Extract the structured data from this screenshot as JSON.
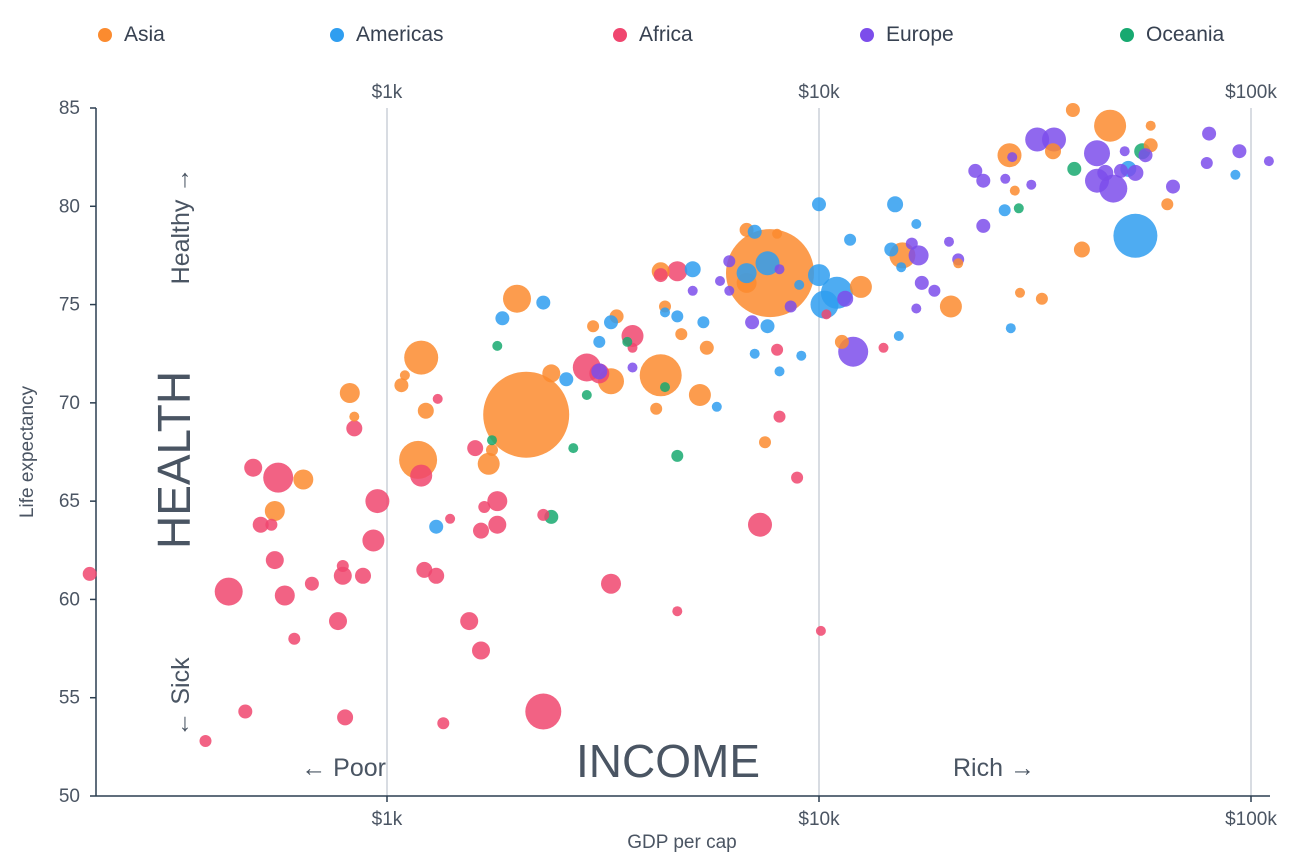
{
  "chart_data": {
    "type": "scatter",
    "title": "",
    "xlabel": "GDP per cap",
    "ylabel": "Life expectancy",
    "x_scale": "log",
    "xlim": [
      200,
      110000
    ],
    "ylim": [
      50,
      85
    ],
    "x_ticks": [
      {
        "value": 1000,
        "label": "$1k"
      },
      {
        "value": 10000,
        "label": "$10k"
      },
      {
        "value": 100000,
        "label": "$100k"
      }
    ],
    "y_ticks": [
      {
        "value": 50,
        "label": "50"
      },
      {
        "value": 55,
        "label": "55"
      },
      {
        "value": 60,
        "label": "60"
      },
      {
        "value": 65,
        "label": "65"
      },
      {
        "value": 70,
        "label": "70"
      },
      {
        "value": 75,
        "label": "75"
      },
      {
        "value": 80,
        "label": "80"
      },
      {
        "value": 85,
        "label": "85"
      }
    ],
    "grid": "vertical lines at x ticks",
    "legend_position": "top",
    "annotations": {
      "health": "HEALTH",
      "income": "INCOME",
      "healthy": "Healthy →",
      "sick": "← Sick",
      "poor": "← Poor",
      "rich": "Rich →"
    },
    "series": [
      {
        "name": "Asia",
        "color": "#fb8b2f",
        "points": [
          {
            "x": 38700,
            "y": 84.9,
            "r": 7
          },
          {
            "x": 47200,
            "y": 84.1,
            "r": 16
          },
          {
            "x": 58600,
            "y": 84.1,
            "r": 5
          },
          {
            "x": 58600,
            "y": 83.1,
            "r": 7
          },
          {
            "x": 27600,
            "y": 82.6,
            "r": 12
          },
          {
            "x": 34800,
            "y": 82.8,
            "r": 8
          },
          {
            "x": 28400,
            "y": 80.8,
            "r": 5
          },
          {
            "x": 64000,
            "y": 80.1,
            "r": 6
          },
          {
            "x": 40600,
            "y": 77.8,
            "r": 8
          },
          {
            "x": 21000,
            "y": 77.1,
            "r": 5
          },
          {
            "x": 15600,
            "y": 77.5,
            "r": 13
          },
          {
            "x": 12500,
            "y": 75.9,
            "r": 11
          },
          {
            "x": 11300,
            "y": 73.1,
            "r": 7
          },
          {
            "x": 20200,
            "y": 74.9,
            "r": 11
          },
          {
            "x": 29200,
            "y": 75.6,
            "r": 5
          },
          {
            "x": 32800,
            "y": 75.3,
            "r": 6
          },
          {
            "x": 7700,
            "y": 76.6,
            "r": 44
          },
          {
            "x": 6800,
            "y": 78.8,
            "r": 7
          },
          {
            "x": 8000,
            "y": 78.6,
            "r": 5
          },
          {
            "x": 6800,
            "y": 76.1,
            "r": 10
          },
          {
            "x": 4300,
            "y": 76.7,
            "r": 9
          },
          {
            "x": 4400,
            "y": 74.9,
            "r": 6
          },
          {
            "x": 4800,
            "y": 73.5,
            "r": 6
          },
          {
            "x": 5500,
            "y": 72.8,
            "r": 7
          },
          {
            "x": 3400,
            "y": 74.4,
            "r": 7
          },
          {
            "x": 3000,
            "y": 73.9,
            "r": 6
          },
          {
            "x": 3300,
            "y": 71.1,
            "r": 13
          },
          {
            "x": 4300,
            "y": 71.4,
            "r": 21
          },
          {
            "x": 5300,
            "y": 70.4,
            "r": 11
          },
          {
            "x": 4200,
            "y": 69.7,
            "r": 6
          },
          {
            "x": 7500,
            "y": 68.0,
            "r": 6
          },
          {
            "x": 2000,
            "y": 75.3,
            "r": 14
          },
          {
            "x": 2400,
            "y": 71.5,
            "r": 9
          },
          {
            "x": 2100,
            "y": 69.4,
            "r": 43
          },
          {
            "x": 1200,
            "y": 72.3,
            "r": 17
          },
          {
            "x": 1100,
            "y": 71.4,
            "r": 5
          },
          {
            "x": 1080,
            "y": 70.9,
            "r": 7
          },
          {
            "x": 1230,
            "y": 69.6,
            "r": 8
          },
          {
            "x": 1180,
            "y": 67.1,
            "r": 19
          },
          {
            "x": 1720,
            "y": 66.9,
            "r": 11
          },
          {
            "x": 1750,
            "y": 67.6,
            "r": 6
          },
          {
            "x": 820,
            "y": 70.5,
            "r": 10
          },
          {
            "x": 840,
            "y": 69.3,
            "r": 5
          },
          {
            "x": 640,
            "y": 66.1,
            "r": 10
          },
          {
            "x": 550,
            "y": 64.5,
            "r": 10
          }
        ]
      },
      {
        "name": "Americas",
        "color": "#2f9ef0",
        "points": [
          {
            "x": 54000,
            "y": 78.5,
            "r": 22
          },
          {
            "x": 52000,
            "y": 81.9,
            "r": 8
          },
          {
            "x": 92000,
            "y": 81.6,
            "r": 5
          },
          {
            "x": 26900,
            "y": 79.8,
            "r": 6
          },
          {
            "x": 15000,
            "y": 80.1,
            "r": 8
          },
          {
            "x": 16800,
            "y": 79.1,
            "r": 5
          },
          {
            "x": 10000,
            "y": 80.1,
            "r": 7
          },
          {
            "x": 11800,
            "y": 78.3,
            "r": 6
          },
          {
            "x": 14700,
            "y": 77.8,
            "r": 7
          },
          {
            "x": 15500,
            "y": 76.9,
            "r": 5
          },
          {
            "x": 10000,
            "y": 76.5,
            "r": 11
          },
          {
            "x": 11000,
            "y": 75.6,
            "r": 16
          },
          {
            "x": 10300,
            "y": 75.0,
            "r": 14
          },
          {
            "x": 15300,
            "y": 73.4,
            "r": 5
          },
          {
            "x": 27800,
            "y": 73.8,
            "r": 5
          },
          {
            "x": 7600,
            "y": 77.1,
            "r": 12
          },
          {
            "x": 9000,
            "y": 76.0,
            "r": 5
          },
          {
            "x": 6800,
            "y": 76.6,
            "r": 10
          },
          {
            "x": 7100,
            "y": 78.7,
            "r": 7
          },
          {
            "x": 5100,
            "y": 76.8,
            "r": 8
          },
          {
            "x": 5400,
            "y": 74.1,
            "r": 6
          },
          {
            "x": 4700,
            "y": 74.4,
            "r": 6
          },
          {
            "x": 4400,
            "y": 74.6,
            "r": 5
          },
          {
            "x": 3300,
            "y": 74.1,
            "r": 7
          },
          {
            "x": 3100,
            "y": 73.1,
            "r": 6
          },
          {
            "x": 7600,
            "y": 73.9,
            "r": 7
          },
          {
            "x": 7100,
            "y": 72.5,
            "r": 5
          },
          {
            "x": 8100,
            "y": 71.6,
            "r": 5
          },
          {
            "x": 9100,
            "y": 72.4,
            "r": 5
          },
          {
            "x": 5800,
            "y": 69.8,
            "r": 5
          },
          {
            "x": 2600,
            "y": 71.2,
            "r": 7
          },
          {
            "x": 2300,
            "y": 75.1,
            "r": 7
          },
          {
            "x": 1850,
            "y": 74.3,
            "r": 7
          },
          {
            "x": 1300,
            "y": 63.7,
            "r": 7
          }
        ]
      },
      {
        "name": "Africa",
        "color": "#f0466f",
        "points": [
          {
            "x": 205,
            "y": 61.3,
            "r": 7
          },
          {
            "x": 380,
            "y": 52.8,
            "r": 6
          },
          {
            "x": 430,
            "y": 60.4,
            "r": 14
          },
          {
            "x": 470,
            "y": 54.3,
            "r": 7
          },
          {
            "x": 490,
            "y": 66.7,
            "r": 9
          },
          {
            "x": 510,
            "y": 63.8,
            "r": 8
          },
          {
            "x": 540,
            "y": 63.8,
            "r": 6
          },
          {
            "x": 560,
            "y": 66.2,
            "r": 15
          },
          {
            "x": 550,
            "y": 62.0,
            "r": 9
          },
          {
            "x": 580,
            "y": 60.2,
            "r": 10
          },
          {
            "x": 610,
            "y": 58.0,
            "r": 6
          },
          {
            "x": 670,
            "y": 60.8,
            "r": 7
          },
          {
            "x": 770,
            "y": 58.9,
            "r": 9
          },
          {
            "x": 790,
            "y": 61.7,
            "r": 6
          },
          {
            "x": 790,
            "y": 61.2,
            "r": 9
          },
          {
            "x": 800,
            "y": 54.0,
            "r": 8
          },
          {
            "x": 840,
            "y": 68.7,
            "r": 8
          },
          {
            "x": 880,
            "y": 61.2,
            "r": 8
          },
          {
            "x": 930,
            "y": 63.0,
            "r": 11
          },
          {
            "x": 950,
            "y": 65.0,
            "r": 12
          },
          {
            "x": 1200,
            "y": 66.3,
            "r": 11
          },
          {
            "x": 1220,
            "y": 61.5,
            "r": 8
          },
          {
            "x": 1300,
            "y": 61.2,
            "r": 8
          },
          {
            "x": 1310,
            "y": 70.2,
            "r": 5
          },
          {
            "x": 1350,
            "y": 53.7,
            "r": 6
          },
          {
            "x": 1400,
            "y": 64.1,
            "r": 5
          },
          {
            "x": 1550,
            "y": 58.9,
            "r": 9
          },
          {
            "x": 1600,
            "y": 67.7,
            "r": 8
          },
          {
            "x": 1650,
            "y": 57.4,
            "r": 9
          },
          {
            "x": 1650,
            "y": 63.5,
            "r": 8
          },
          {
            "x": 1680,
            "y": 64.7,
            "r": 6
          },
          {
            "x": 1800,
            "y": 63.8,
            "r": 9
          },
          {
            "x": 1800,
            "y": 65.0,
            "r": 10
          },
          {
            "x": 2300,
            "y": 64.3,
            "r": 6
          },
          {
            "x": 2300,
            "y": 54.3,
            "r": 18
          },
          {
            "x": 2900,
            "y": 71.8,
            "r": 14
          },
          {
            "x": 3300,
            "y": 60.8,
            "r": 10
          },
          {
            "x": 3100,
            "y": 71.5,
            "r": 10
          },
          {
            "x": 3700,
            "y": 72.8,
            "r": 5
          },
          {
            "x": 3700,
            "y": 73.4,
            "r": 11
          },
          {
            "x": 4300,
            "y": 76.5,
            "r": 7
          },
          {
            "x": 4700,
            "y": 76.7,
            "r": 10
          },
          {
            "x": 4700,
            "y": 59.4,
            "r": 5
          },
          {
            "x": 7300,
            "y": 63.8,
            "r": 12
          },
          {
            "x": 8000,
            "y": 72.7,
            "r": 6
          },
          {
            "x": 8100,
            "y": 69.3,
            "r": 6
          },
          {
            "x": 8900,
            "y": 66.2,
            "r": 6
          },
          {
            "x": 10100,
            "y": 58.4,
            "r": 5
          },
          {
            "x": 10400,
            "y": 74.5,
            "r": 5
          },
          {
            "x": 14100,
            "y": 72.8,
            "r": 5
          }
        ]
      },
      {
        "name": "Europe",
        "color": "#7c4deb",
        "points": [
          {
            "x": 32000,
            "y": 83.4,
            "r": 12
          },
          {
            "x": 35000,
            "y": 83.4,
            "r": 12
          },
          {
            "x": 44000,
            "y": 82.7,
            "r": 13
          },
          {
            "x": 51000,
            "y": 82.8,
            "r": 5
          },
          {
            "x": 57000,
            "y": 82.6,
            "r": 7
          },
          {
            "x": 80000,
            "y": 83.7,
            "r": 7
          },
          {
            "x": 94000,
            "y": 82.8,
            "r": 7
          },
          {
            "x": 110000,
            "y": 82.3,
            "r": 5
          },
          {
            "x": 79000,
            "y": 82.2,
            "r": 6
          },
          {
            "x": 44000,
            "y": 81.3,
            "r": 12
          },
          {
            "x": 48000,
            "y": 80.9,
            "r": 14
          },
          {
            "x": 46000,
            "y": 81.7,
            "r": 8
          },
          {
            "x": 50000,
            "y": 81.8,
            "r": 7
          },
          {
            "x": 54000,
            "y": 81.7,
            "r": 8
          },
          {
            "x": 66000,
            "y": 81.0,
            "r": 7
          },
          {
            "x": 28000,
            "y": 82.5,
            "r": 5
          },
          {
            "x": 31000,
            "y": 81.1,
            "r": 5
          },
          {
            "x": 23000,
            "y": 81.8,
            "r": 7
          },
          {
            "x": 24000,
            "y": 81.3,
            "r": 7
          },
          {
            "x": 27000,
            "y": 81.4,
            "r": 5
          },
          {
            "x": 24000,
            "y": 79.0,
            "r": 7
          },
          {
            "x": 20000,
            "y": 78.2,
            "r": 5
          },
          {
            "x": 21000,
            "y": 77.3,
            "r": 6
          },
          {
            "x": 17000,
            "y": 77.5,
            "r": 10
          },
          {
            "x": 16400,
            "y": 78.1,
            "r": 6
          },
          {
            "x": 17300,
            "y": 76.1,
            "r": 7
          },
          {
            "x": 18500,
            "y": 75.7,
            "r": 6
          },
          {
            "x": 16800,
            "y": 74.8,
            "r": 5
          },
          {
            "x": 12000,
            "y": 72.6,
            "r": 15
          },
          {
            "x": 11500,
            "y": 75.3,
            "r": 8
          },
          {
            "x": 8600,
            "y": 74.9,
            "r": 6
          },
          {
            "x": 8100,
            "y": 76.8,
            "r": 5
          },
          {
            "x": 7000,
            "y": 74.1,
            "r": 7
          },
          {
            "x": 6200,
            "y": 77.2,
            "r": 6
          },
          {
            "x": 6200,
            "y": 75.7,
            "r": 5
          },
          {
            "x": 5100,
            "y": 75.7,
            "r": 5
          },
          {
            "x": 5900,
            "y": 76.2,
            "r": 5
          },
          {
            "x": 3100,
            "y": 71.6,
            "r": 8
          },
          {
            "x": 3700,
            "y": 71.8,
            "r": 5
          }
        ]
      },
      {
        "name": "Oceania",
        "color": "#17a970",
        "points": [
          {
            "x": 56000,
            "y": 82.8,
            "r": 8
          },
          {
            "x": 39000,
            "y": 81.9,
            "r": 7
          },
          {
            "x": 29000,
            "y": 79.9,
            "r": 5
          },
          {
            "x": 1800,
            "y": 72.9,
            "r": 5
          },
          {
            "x": 1750,
            "y": 68.1,
            "r": 5
          },
          {
            "x": 2400,
            "y": 64.2,
            "r": 7
          },
          {
            "x": 2700,
            "y": 67.7,
            "r": 5
          },
          {
            "x": 2900,
            "y": 70.4,
            "r": 5
          },
          {
            "x": 4400,
            "y": 70.8,
            "r": 5
          },
          {
            "x": 4700,
            "y": 67.3,
            "r": 6
          },
          {
            "x": 3600,
            "y": 73.1,
            "r": 5
          }
        ]
      }
    ]
  }
}
